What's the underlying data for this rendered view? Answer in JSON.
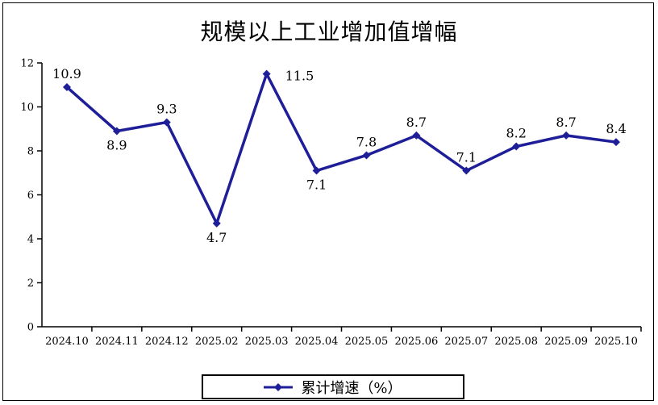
{
  "window": {
    "background_color": "#FFFFFF",
    "border_color": "#000000"
  },
  "chart_data": {
    "type": "line",
    "title": "规模以上工业增加值增幅",
    "categories": [
      "2024.10",
      "2024.11",
      "2024.12",
      "2025.02",
      "2025.03",
      "2025.04",
      "2025.05",
      "2025.06",
      "2025.07",
      "2025.08",
      "2025.09",
      "2025.10"
    ],
    "series": [
      {
        "name": "累计增速（%）",
        "values": [
          10.9,
          8.9,
          9.3,
          4.7,
          11.5,
          7.1,
          7.8,
          8.7,
          7.1,
          8.2,
          8.7,
          8.4
        ],
        "color": "#1E1E99",
        "marker": "diamond",
        "data_label_positions": [
          "above",
          "below",
          "above",
          "below",
          "right",
          "below",
          "above",
          "above",
          "above",
          "above",
          "above",
          "above"
        ]
      }
    ],
    "xlabel": "",
    "ylabel": "",
    "ylim": [
      0,
      12
    ],
    "yticks": [
      0,
      2,
      4,
      6,
      8,
      10,
      12
    ],
    "grid": false,
    "legend_position": "bottom",
    "axis_color": "#000000",
    "text_color": "#000000"
  }
}
